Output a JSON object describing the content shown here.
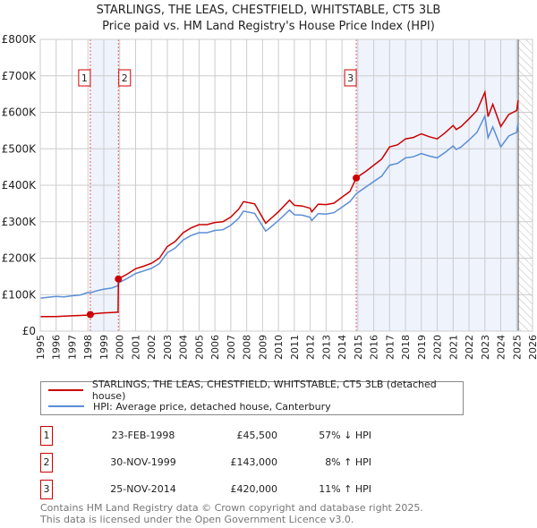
{
  "chart_data": {
    "type": "line",
    "title": "STARLINGS, THE LEAS, CHESTFIELD, WHITSTABLE, CT5 3LB",
    "subtitle": "Price paid vs. HM Land Registry's House Price Index (HPI)",
    "xlim": [
      1995,
      2026
    ],
    "ylim": [
      0,
      800000
    ],
    "grid": true,
    "yticks": [
      "£0",
      "£100K",
      "£200K",
      "£300K",
      "£400K",
      "£500K",
      "£600K",
      "£700K",
      "£800K"
    ],
    "xticks": [
      "1995",
      "1996",
      "1997",
      "1998",
      "1999",
      "2000",
      "2001",
      "2002",
      "2003",
      "2004",
      "2005",
      "2006",
      "2007",
      "2008",
      "2009",
      "2010",
      "2011",
      "2012",
      "2013",
      "2014",
      "2015",
      "2016",
      "2017",
      "2018",
      "2019",
      "2020",
      "2021",
      "2022",
      "2023",
      "2024",
      "2025",
      "2026"
    ],
    "x": [
      1995,
      1995.5,
      1996,
      1996.5,
      1997,
      1997.5,
      1998,
      1998.15,
      1998.5,
      1999,
      1999.5,
      1999.9,
      1999.92,
      2000.5,
      2001,
      2001.5,
      2002,
      2002.5,
      2003,
      2003.5,
      2004,
      2004.5,
      2005,
      2005.5,
      2006,
      2006.5,
      2007,
      2007.5,
      2007.8,
      2008.5,
      2009.2,
      2009.5,
      2010,
      2010.7,
      2011,
      2011.5,
      2012,
      2012.1,
      2012.5,
      2013,
      2013.5,
      2014,
      2014.5,
      2014.9,
      2015.5,
      2016,
      2016.5,
      2017,
      2017.5,
      2018,
      2018.5,
      2019,
      2019.5,
      2020,
      2020.5,
      2021,
      2021.2,
      2021.5,
      2022,
      2022.5,
      2023,
      2023.2,
      2023.5,
      2024,
      2024.5,
      2025,
      2025.1
    ],
    "series": [
      {
        "name": "STARLINGS, THE LEAS, CHESTFIELD, WHITSTABLE, CT5 3LB (detached house)",
        "color": "#cc0000",
        "values": [
          40,
          40,
          40,
          41,
          42,
          43,
          44,
          45.5,
          48,
          50,
          51,
          52,
          143,
          157,
          171,
          178,
          186,
          200,
          232,
          246,
          270,
          283,
          292,
          292,
          298,
          300,
          313,
          335,
          355,
          349,
          296,
          308,
          327,
          359,
          345,
          343,
          337,
          327,
          348,
          347,
          351,
          367,
          383,
          420,
          438,
          455,
          472,
          505,
          511,
          527,
          531,
          541,
          533,
          527,
          544,
          564,
          553,
          561,
          582,
          605,
          655,
          588,
          622,
          561,
          594,
          605,
          633
        ]
      },
      {
        "name": "HPI: Average price, detached house, Canterbury",
        "color": "#5b8ed6",
        "values": [
          90,
          93,
          95,
          94,
          97,
          99,
          106,
          105,
          110,
          115,
          118,
          125,
          132,
          145,
          158,
          165,
          172,
          185,
          215,
          228,
          250,
          262,
          270,
          270,
          276,
          278,
          290,
          310,
          329,
          323,
          274,
          285,
          303,
          332,
          319,
          318,
          312,
          303,
          322,
          321,
          325,
          340,
          355,
          377,
          395,
          410,
          425,
          455,
          460,
          475,
          478,
          487,
          480,
          475,
          490,
          508,
          498,
          505,
          524,
          545,
          590,
          530,
          560,
          505,
          535,
          545,
          570
        ]
      }
    ],
    "value_unit": "thousands GBP",
    "shaded_periods": [
      [
        1998.15,
        1999.92
      ],
      [
        2014.9,
        2025.1
      ]
    ],
    "forecast_hatch": [
      2025.1,
      2026
    ],
    "sales": [
      {
        "label": "1",
        "x": 1998.15,
        "value": 45.5,
        "date": "23-FEB-1998",
        "price": "£45,500",
        "hpi": "57% ↓ HPI"
      },
      {
        "label": "2",
        "x": 1999.92,
        "value": 143,
        "date": "30-NOV-1999",
        "price": "£143,000",
        "hpi": "8% ↑ HPI"
      },
      {
        "label": "3",
        "x": 2014.9,
        "value": 420,
        "date": "25-NOV-2014",
        "price": "£420,000",
        "hpi": "11% ↑ HPI"
      }
    ],
    "legend_position": "below"
  },
  "footer": [
    "Contains HM Land Registry data © Crown copyright and database right 2025.",
    "This data is licensed under the Open Government Licence v3.0."
  ]
}
